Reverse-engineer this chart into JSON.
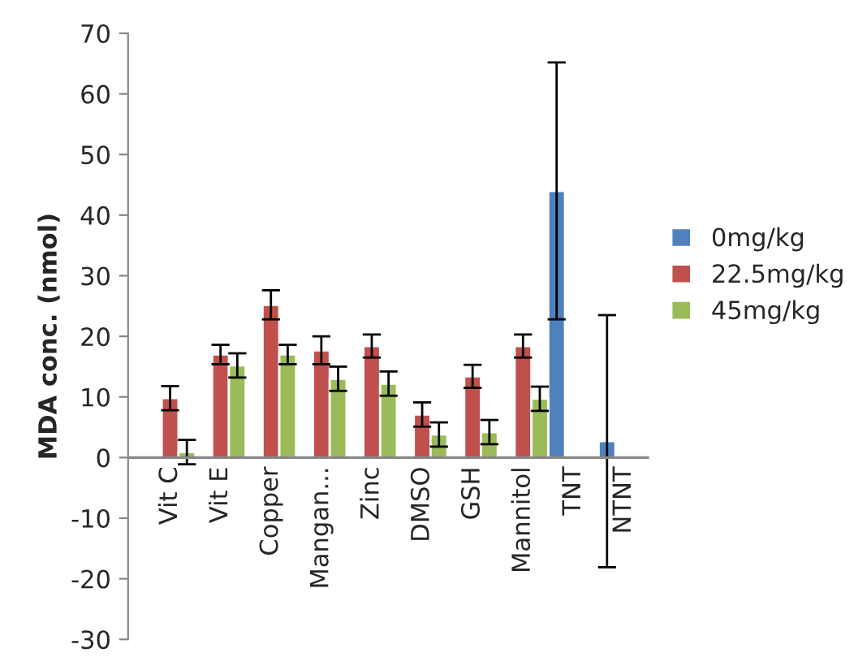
{
  "chart_data": {
    "type": "bar",
    "ylabel": "MDA conc. (nmol)",
    "categories": [
      "Vit C",
      "Vit E",
      "Copper",
      "Mangan...",
      "Zinc",
      "DMSO",
      "GSH",
      "Mannitol",
      "TNT",
      "NTNT"
    ],
    "series": [
      {
        "name": "0mg/kg",
        "color": "#4f81bd",
        "values": [
          null,
          null,
          null,
          null,
          null,
          null,
          null,
          null,
          44.0,
          2.7
        ],
        "errors": [
          null,
          null,
          null,
          null,
          null,
          null,
          null,
          null,
          21.2,
          20.8
        ]
      },
      {
        "name": "22.5mg/kg",
        "color": "#c0504d",
        "values": [
          9.8,
          17.0,
          25.2,
          17.7,
          18.4,
          7.1,
          13.4,
          18.4,
          null,
          null
        ],
        "errors": [
          2,
          1.6,
          2.4,
          2.3,
          1.9,
          2,
          1.9,
          1.9,
          null,
          null
        ]
      },
      {
        "name": "45mg/kg",
        "color": "#9bbb59",
        "values": [
          0.9,
          15.2,
          17.0,
          13.0,
          12.2,
          3.8,
          4.2,
          9.7,
          null,
          null
        ],
        "errors": [
          2,
          2,
          1.6,
          2,
          2,
          2,
          2,
          2,
          null,
          null
        ]
      }
    ],
    "ylim": [
      -30,
      70
    ],
    "yticks": [
      -30,
      -20,
      -10,
      0,
      10,
      20,
      30,
      40,
      50,
      60,
      70
    ],
    "grid": false,
    "legend": "right"
  }
}
